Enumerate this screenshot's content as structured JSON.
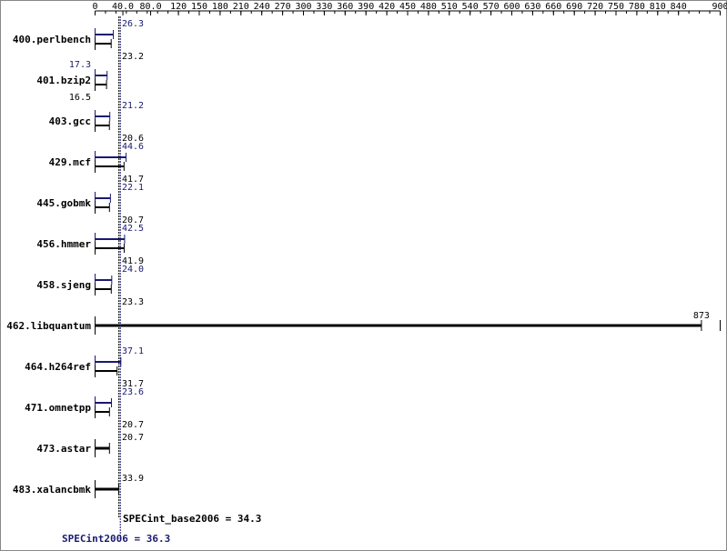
{
  "chart_data": {
    "type": "bar",
    "xlim": [
      0,
      900
    ],
    "x_ticks": [
      "0",
      "40.0",
      "80.0",
      "120",
      "150",
      "180",
      "210",
      "240",
      "270",
      "300",
      "330",
      "360",
      "390",
      "420",
      "450",
      "480",
      "510",
      "540",
      "570",
      "600",
      "630",
      "660",
      "690",
      "720",
      "750",
      "780",
      "810",
      "840",
      "900"
    ],
    "categories": [
      "400.perlbench",
      "401.bzip2",
      "403.gcc",
      "429.mcf",
      "445.gobmk",
      "456.hmmer",
      "458.sjeng",
      "462.libquantum",
      "464.h264ref",
      "471.omnetpp",
      "473.astar",
      "483.xalancbmk"
    ],
    "series": [
      {
        "key": "peak",
        "color": "#191970",
        "values": [
          26.3,
          17.3,
          21.2,
          44.6,
          22.1,
          42.5,
          24.0,
          null,
          37.1,
          23.6,
          null,
          null
        ],
        "labels": [
          "26.3",
          "17.3",
          "21.2",
          "44.6",
          "22.1",
          "42.5",
          "24.0",
          null,
          "37.1",
          "23.6",
          null,
          null
        ]
      },
      {
        "key": "base",
        "color": "#000000",
        "values": [
          23.2,
          16.5,
          20.6,
          41.7,
          20.7,
          41.9,
          23.3,
          873,
          31.7,
          20.7,
          20.7,
          33.9
        ],
        "labels": [
          "23.2",
          "16.5",
          "20.6",
          "41.7",
          "20.7",
          "41.9",
          "23.3",
          "873",
          "31.7",
          "20.7",
          "20.7",
          "33.9"
        ]
      }
    ],
    "summary": {
      "base_label": "SPECint_base2006 = 34.3",
      "base_value": 34.3,
      "peak_label": "SPECint2006 = 36.3",
      "peak_value": 36.3
    }
  }
}
